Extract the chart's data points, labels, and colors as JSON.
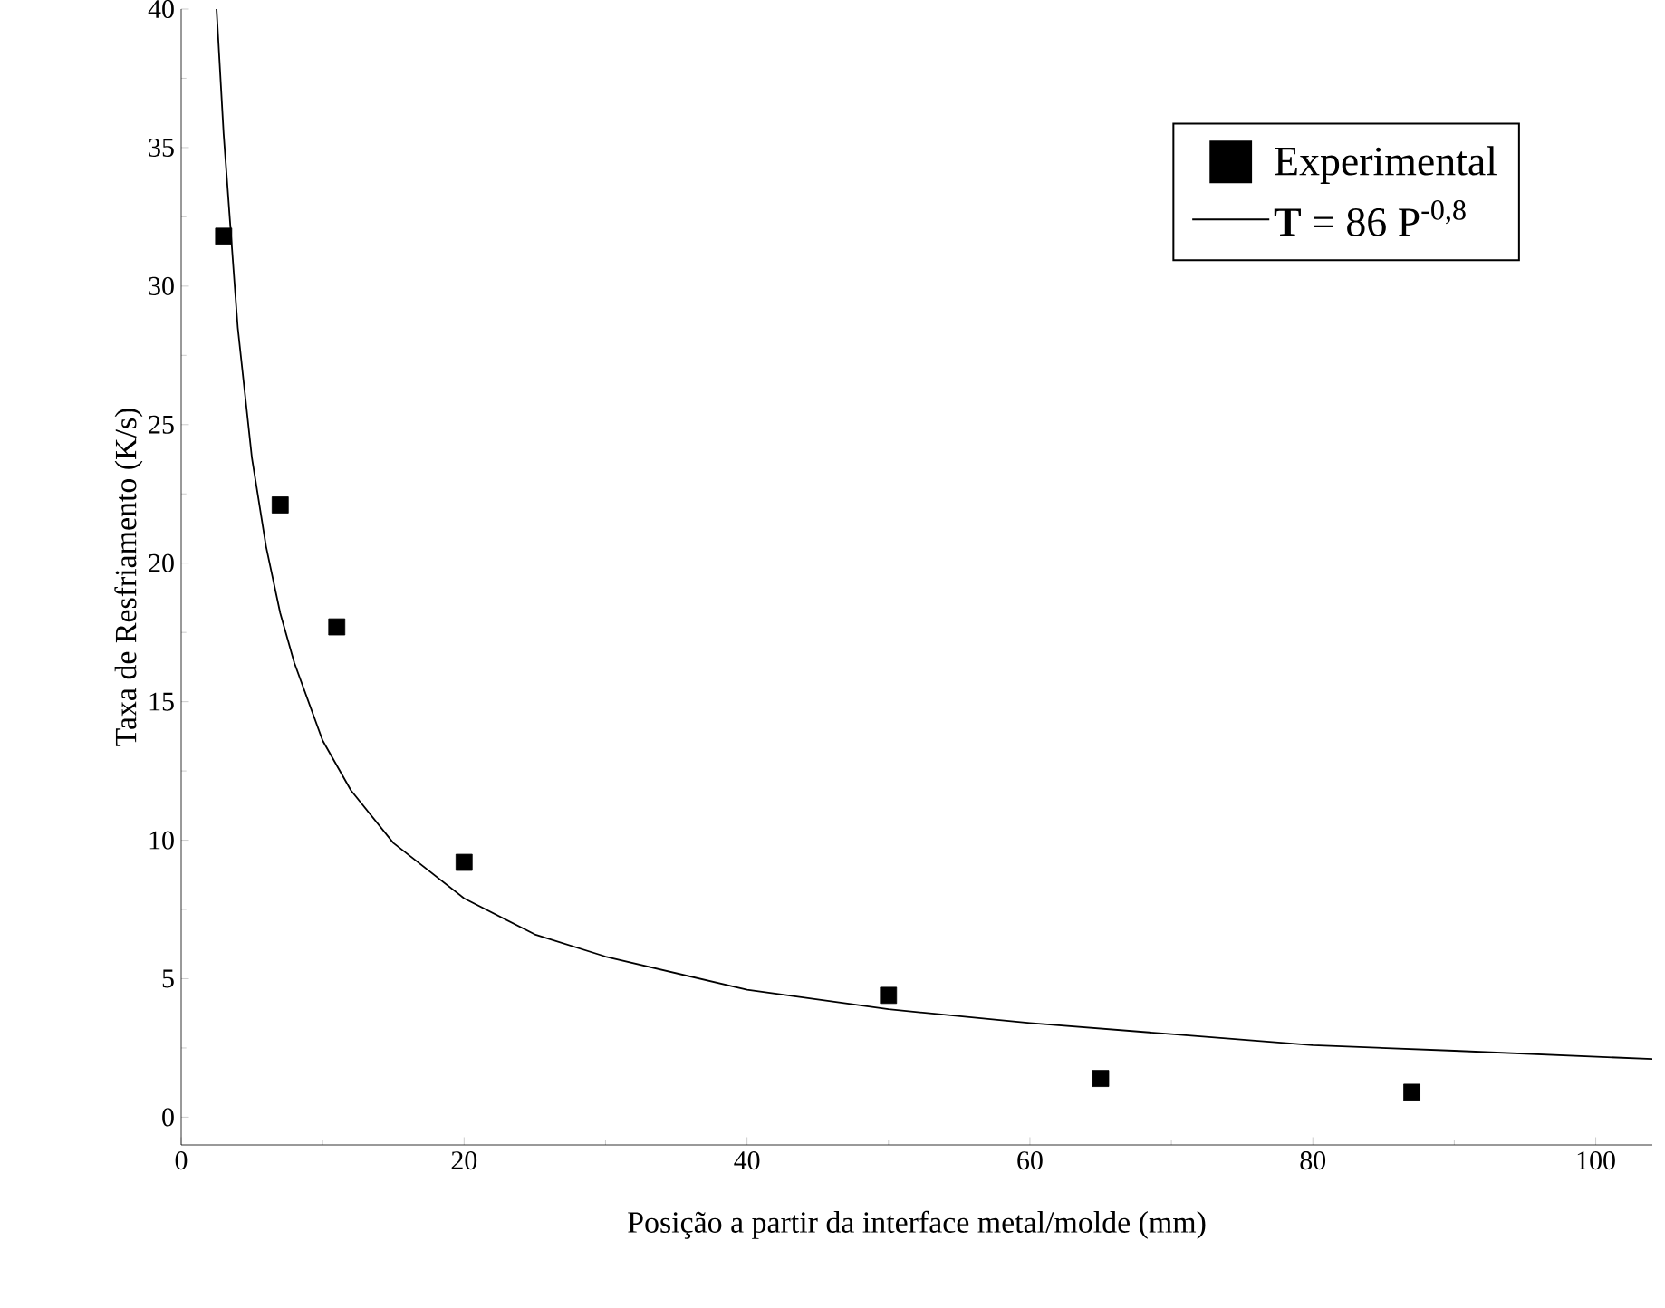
{
  "chart_data": {
    "type": "scatter",
    "xlabel": "Posição a partir da interface metal/molde (mm)",
    "ylabel": "Taxa de Resfriamento (K/s)",
    "xlim": [
      0,
      104
    ],
    "ylim": [
      -1,
      40
    ],
    "xticks": [
      0,
      20,
      40,
      60,
      80,
      100
    ],
    "yticks": [
      0,
      5,
      10,
      15,
      20,
      25,
      30,
      35,
      40
    ],
    "legend": "top right",
    "series": [
      {
        "name": "Experimental",
        "type": "scatter",
        "marker": "square",
        "color": "#000000",
        "x": [
          3,
          7,
          11,
          20,
          50,
          65,
          87
        ],
        "values": [
          31.8,
          22.1,
          17.7,
          9.2,
          4.4,
          1.4,
          0.9
        ]
      },
      {
        "name": "**T** = 86 P$^{-0,8}$",
        "type": "line",
        "marker": "none",
        "line_style": "solid",
        "color": "#000000",
        "x": [
          2.5,
          3,
          4,
          5,
          6,
          7,
          8,
          10,
          12,
          15,
          20,
          25,
          30,
          40,
          50,
          60,
          70,
          80,
          90,
          104
        ],
        "values": [
          40,
          35.5,
          28.5,
          23.8,
          20.6,
          18.2,
          16.4,
          13.6,
          11.8,
          9.9,
          7.9,
          6.6,
          5.8,
          4.6,
          3.9,
          3.4,
          3.0,
          2.6,
          2.4,
          2.1
        ]
      }
    ]
  }
}
